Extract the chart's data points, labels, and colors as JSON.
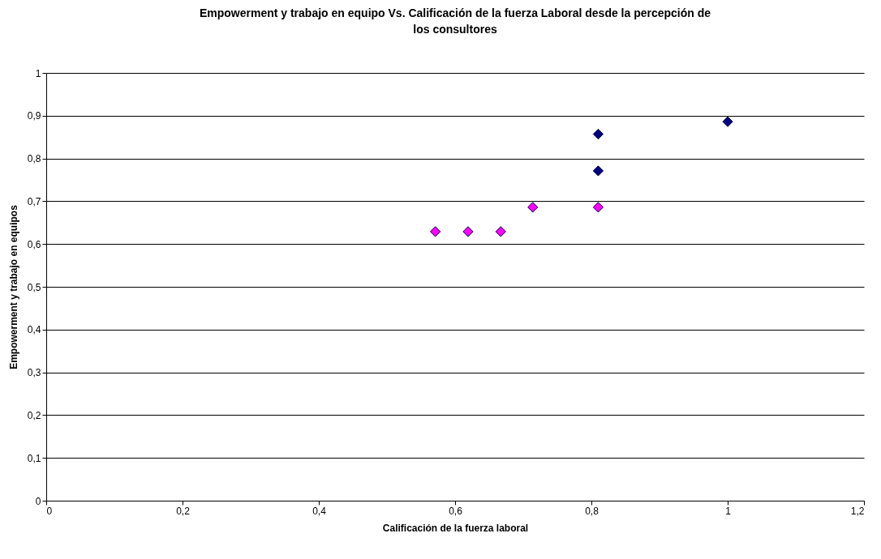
{
  "chart_data": {
    "type": "scatter",
    "title": "Empowerment y trabajo en equipo Vs. Calificación de la fuerza Laboral desde la percepción de los consultores",
    "xlabel": "Calificación de la fuerza laboral",
    "ylabel": "Empowerment y trabajo en equipos",
    "marker": "diamond",
    "grid": "y",
    "xlim": [
      0,
      1.2
    ],
    "xticks": [
      0,
      {
        "value": 0.2,
        "label": "0,2"
      },
      {
        "value": 0.4,
        "label": "0,4"
      },
      {
        "value": 0.6,
        "label": "0,6"
      },
      {
        "value": 0.8,
        "label": "0,8"
      },
      1,
      {
        "value": 1.2,
        "label": "1,2"
      }
    ],
    "ylim": [
      0,
      1
    ],
    "yticks": [
      0,
      {
        "value": 0.1,
        "label": "0,1"
      },
      {
        "value": 0.2,
        "label": "0,2"
      },
      {
        "value": 0.3,
        "label": "0,3"
      },
      {
        "value": 0.4,
        "label": "0,4"
      },
      {
        "value": 0.5,
        "label": "0,5"
      },
      {
        "value": 0.6,
        "label": "0,6"
      },
      {
        "value": 0.7,
        "label": "0,7"
      },
      {
        "value": 0.8,
        "label": "0,8"
      },
      {
        "value": 0.9,
        "label": "0,9"
      },
      1
    ],
    "series": [
      {
        "color": "#000080",
        "x": [
          0.81,
          0.81,
          1
        ],
        "values": [
          0.857,
          0.771,
          0.886
        ]
      },
      {
        "color": "#ff00ff",
        "x": [
          0.571,
          0.619,
          0.667,
          0.714,
          0.81
        ],
        "values": [
          0.629,
          0.629,
          0.629,
          0.686,
          0.686
        ]
      }
    ]
  }
}
